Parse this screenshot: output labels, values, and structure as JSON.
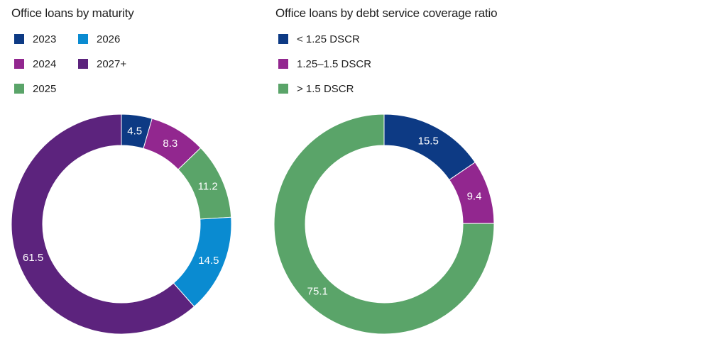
{
  "chart_data": [
    {
      "type": "pie",
      "title": "Office loans by maturity",
      "categories": [
        "2023",
        "2024",
        "2025",
        "2026",
        "2027+"
      ],
      "values": [
        4.5,
        8.3,
        11.2,
        14.5,
        61.5
      ],
      "colors": [
        "#0d3a84",
        "#92278f",
        "#5aa469",
        "#0a8bd1",
        "#5c237d"
      ],
      "slice_order": [
        0,
        1,
        2,
        3,
        4
      ],
      "labels": [
        "4.5",
        "8.3",
        "11.2",
        "14.5",
        "61.5"
      ],
      "legend_placement": "top-left",
      "donut": true
    },
    {
      "type": "pie",
      "title": "Office loans by debt service coverage ratio",
      "categories": [
        "< 1.25 DSCR",
        "1.25–1.5 DSCR",
        "> 1.5 DSCR"
      ],
      "values": [
        15.5,
        9.4,
        75.1
      ],
      "colors": [
        "#0d3a84",
        "#92278f",
        "#5aa469"
      ],
      "slice_order": [
        0,
        1,
        2
      ],
      "labels": [
        "15.5",
        "9.4",
        "75.1"
      ],
      "legend_placement": "top-left",
      "donut": true
    }
  ]
}
